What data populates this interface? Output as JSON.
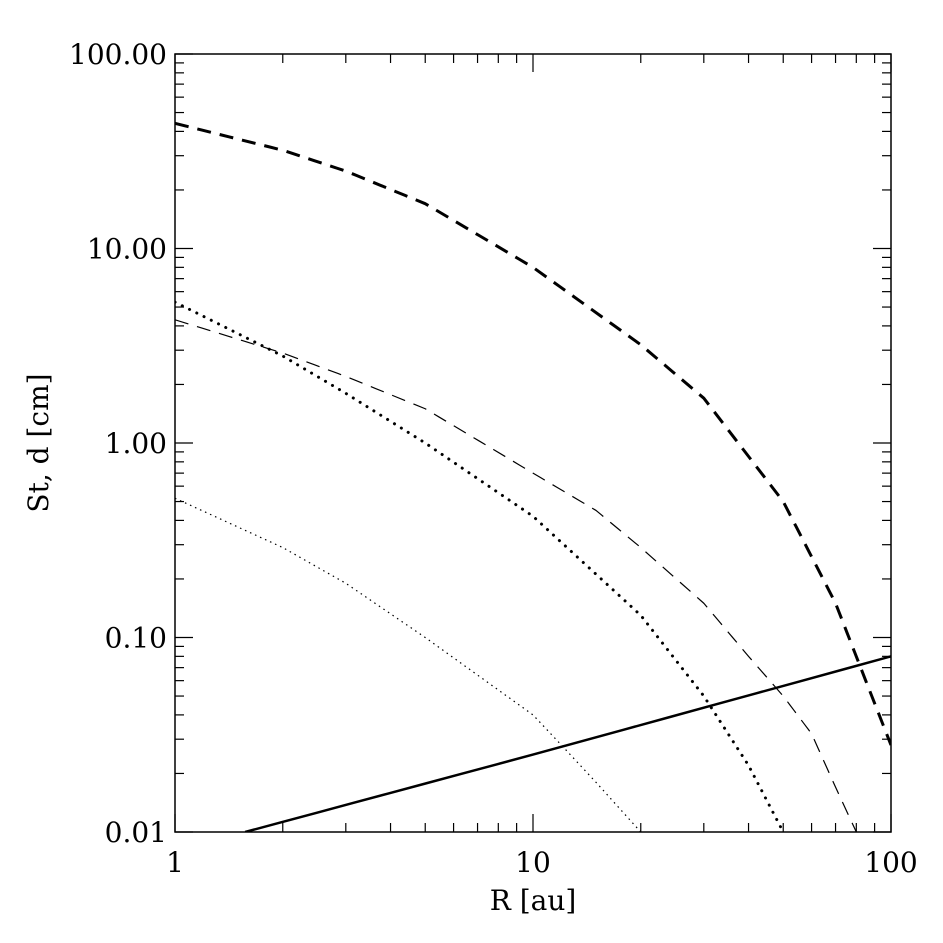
{
  "chart_data": {
    "type": "line",
    "title": "",
    "xlabel": "R [au]",
    "ylabel": "St, d [cm]",
    "xscale": "log",
    "yscale": "log",
    "xlim": [
      1,
      100
    ],
    "ylim": [
      0.01,
      100
    ],
    "x_ticks": [
      1,
      10,
      100
    ],
    "x_tick_labels": [
      "1",
      "10",
      "100"
    ],
    "y_ticks": [
      0.01,
      0.1,
      1,
      10,
      100
    ],
    "y_tick_labels": [
      "0.01",
      "0.10",
      "1.00",
      "10.00",
      "100.00"
    ],
    "grid": false,
    "legend": "none",
    "series": [
      {
        "style": "thick-dashed",
        "x": [
          1,
          2,
          3,
          5,
          10,
          20,
          30,
          50,
          70,
          85,
          100
        ],
        "y": [
          44,
          32,
          25,
          17,
          8,
          3.2,
          1.7,
          0.5,
          0.15,
          0.06,
          0.028
        ]
      },
      {
        "style": "thin-dashed",
        "x": [
          1,
          2,
          3,
          5,
          10,
          15,
          20,
          30,
          40,
          50,
          60,
          70,
          80
        ],
        "y": [
          4.3,
          2.9,
          2.2,
          1.5,
          0.7,
          0.45,
          0.29,
          0.15,
          0.08,
          0.05,
          0.032,
          0.017,
          0.01
        ]
      },
      {
        "style": "thick-dotted",
        "x": [
          1,
          2,
          3,
          5,
          10,
          20,
          30,
          40,
          50
        ],
        "y": [
          5.3,
          2.8,
          1.8,
          1.0,
          0.42,
          0.13,
          0.05,
          0.022,
          0.01
        ]
      },
      {
        "style": "thin-dotted",
        "x": [
          1,
          2,
          3,
          5,
          10,
          12,
          15,
          20
        ],
        "y": [
          0.52,
          0.29,
          0.19,
          0.1,
          0.04,
          0.028,
          0.018,
          0.01
        ]
      },
      {
        "style": "solid",
        "x": [
          1.57,
          10,
          100
        ],
        "y": [
          0.01,
          0.025,
          0.08
        ]
      }
    ]
  }
}
